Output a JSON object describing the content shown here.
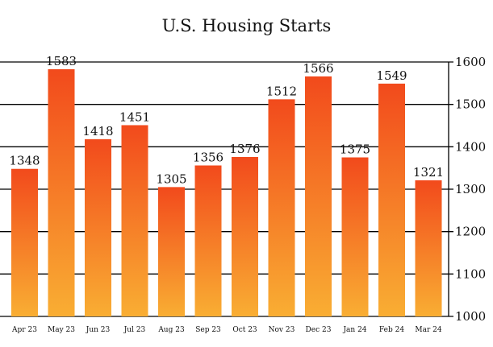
{
  "chart_data": {
    "type": "bar",
    "title": "U.S. Housing Starts",
    "xlabel": "",
    "ylabel": "",
    "categories": [
      "Apr 23",
      "May 23",
      "Jun 23",
      "Jul 23",
      "Aug 23",
      "Sep 23",
      "Oct 23",
      "Nov 23",
      "Dec 23",
      "Jan 24",
      "Feb 24",
      "Mar 24"
    ],
    "values": [
      1348,
      1583,
      1418,
      1451,
      1305,
      1356,
      1376,
      1512,
      1566,
      1375,
      1549,
      1321
    ],
    "ylim": [
      1000,
      1600
    ],
    "yticks": [
      1000,
      1100,
      1200,
      1300,
      1400,
      1500,
      1600
    ],
    "y_axis_side": "right",
    "grid": true,
    "legend": "none",
    "colors": {
      "bar_top": "#f24a1c",
      "bar_bottom": "#f9ae33",
      "grid": "#000000",
      "text": "#111111"
    }
  }
}
